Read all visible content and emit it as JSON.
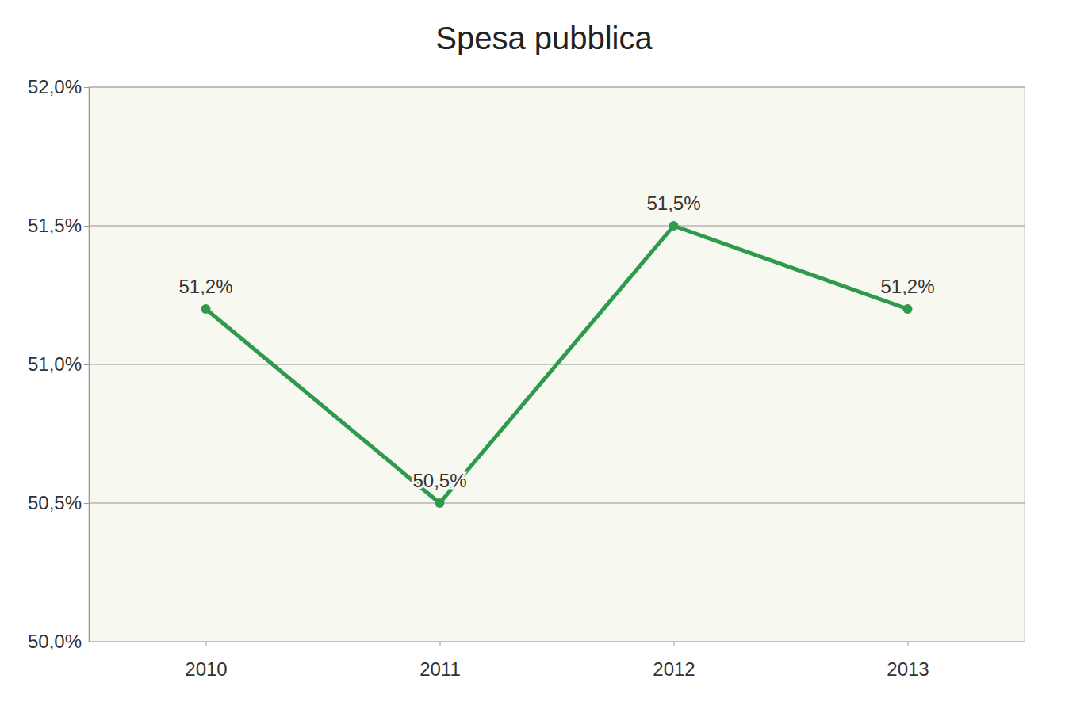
{
  "chart_data": {
    "type": "line",
    "title": "Spesa pubblica",
    "categories": [
      "2010",
      "2011",
      "2012",
      "2013"
    ],
    "values": [
      51.2,
      50.5,
      51.5,
      51.2
    ],
    "value_labels": [
      "51,2%",
      "50,5%",
      "51,5%",
      "51,2%"
    ],
    "color": "#2e9a4e",
    "marker": "circle",
    "data_labels": true,
    "grid": true,
    "ylim": [
      50,
      52
    ],
    "yticks": [
      {
        "value": 50,
        "label": "50,0%"
      },
      {
        "value": 50.5,
        "label": "50,5%"
      },
      {
        "value": 51,
        "label": "51,0%"
      },
      {
        "value": 51.5,
        "label": "51,5%"
      },
      {
        "value": 52,
        "label": "52,0%"
      }
    ]
  }
}
